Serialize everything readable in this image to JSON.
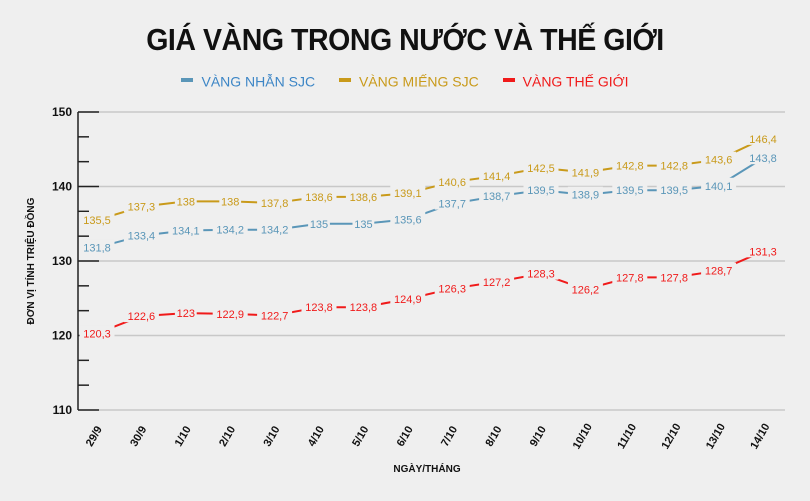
{
  "title": "GIÁ VÀNG TRONG NƯỚC VÀ THẾ GIỚI",
  "legend": [
    {
      "label": "VÀNG NHẪN SJC",
      "color": "#5a96b8"
    },
    {
      "label": "VÀNG MIẾNG SJC",
      "color": "#c99a1a"
    },
    {
      "label": "VÀNG THẾ GIỚI",
      "color": "#f01a1a"
    }
  ],
  "chart_data": {
    "type": "line",
    "title": "GIÁ VÀNG TRONG NƯỚC VÀ THẾ GIỚI",
    "xlabel": "NGÀY/THÁNG",
    "ylabel": "ĐƠN VỊ TÍNH TRIỆU ĐỒNG",
    "ylim": [
      110,
      150
    ],
    "yticks": [
      110,
      120,
      130,
      140,
      150
    ],
    "grid": true,
    "legend_position": "top",
    "categories": [
      "29/9",
      "30/9",
      "1/10",
      "2/10",
      "3/10",
      "4/10",
      "5/10",
      "6/10",
      "7/10",
      "8/10",
      "9/10",
      "10/10",
      "11/10",
      "12/10",
      "13/10",
      "14/10"
    ],
    "series": [
      {
        "name": "VÀNG NHẪN SJC",
        "color": "#5a96b8",
        "values": [
          131.8,
          133.4,
          134.1,
          134.2,
          134.2,
          135,
          135,
          135.6,
          137.7,
          138.7,
          139.5,
          138.9,
          139.5,
          139.5,
          140.1,
          143.8
        ],
        "labels": [
          "131,8",
          "133,4",
          "134,1",
          "134,2",
          "134,2",
          "135",
          "135",
          "135,6",
          "137,7",
          "138,7",
          "139,5",
          "138,9",
          "139,5",
          "139,5",
          "140,1",
          "143,8"
        ]
      },
      {
        "name": "VÀNG MIẾNG SJC",
        "color": "#c99a1a",
        "values": [
          135.5,
          137.3,
          138,
          138,
          137.8,
          138.6,
          138.6,
          139.1,
          140.6,
          141.4,
          142.5,
          141.9,
          142.8,
          142.8,
          143.6,
          146.4
        ],
        "labels": [
          "135,5",
          "137,3",
          "138",
          "138",
          "137,8",
          "138,6",
          "138,6",
          "139,1",
          "140,6",
          "141,4",
          "142,5",
          "141,9",
          "142,8",
          "142,8",
          "143,6",
          "146,4"
        ]
      },
      {
        "name": "VÀNG THẾ GIỚI",
        "color": "#f01a1a",
        "values": [
          120.3,
          122.6,
          123,
          122.9,
          122.7,
          123.8,
          123.8,
          124.9,
          126.3,
          127.2,
          128.3,
          126.2,
          127.8,
          127.8,
          128.7,
          131.3
        ],
        "labels": [
          "120,3",
          "122,6",
          "123",
          "122,9",
          "122,7",
          "123,8",
          "123,8",
          "124,9",
          "126,3",
          "127,2",
          "128,3",
          "126,2",
          "127,8",
          "127,8",
          "128,7",
          "131,3"
        ]
      }
    ]
  }
}
